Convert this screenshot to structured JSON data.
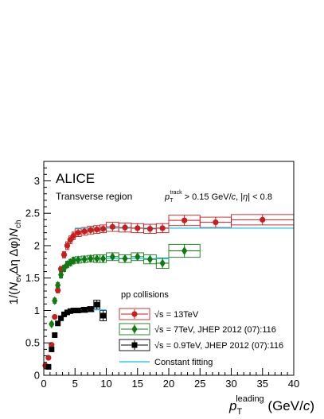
{
  "chart_data": {
    "type": "scatter",
    "experiment_label": "ALICE",
    "region_label": "Transverse region",
    "cut_label": {
      "prefix": "p",
      "prefix_sub": "T",
      "prefix_sup": "track",
      "main": " > 0.15 GeV/",
      "c_italic": "c",
      "middle": ", |",
      "eta": "η",
      "suffix": "| < 0.8"
    },
    "xlabel": {
      "p": "p",
      "sub": "T",
      "sup": "leading",
      "unit_open": " (GeV/",
      "c_italic": "c",
      "unit_close": ")"
    },
    "ylabel": "1/(N_ev Δη Δφ) N_ch",
    "xlim": [
      0,
      40
    ],
    "ylim": [
      0,
      3.3
    ],
    "xticks": [
      "0",
      "5",
      "10",
      "15",
      "20",
      "25",
      "30",
      "35",
      "40"
    ],
    "yticks": [
      "0",
      "0.5",
      "1",
      "1.5",
      "2",
      "2.5",
      "3"
    ],
    "legend": {
      "header": "pp collisions",
      "placement": "lower-middle",
      "entries": [
        {
          "text": "√s = 13TeV",
          "marker": "circle",
          "color": "#c81e1e"
        },
        {
          "text": "√s = 7TeV, JHEP 2012 (07):116",
          "marker": "diamond",
          "color": "#137a13"
        },
        {
          "text": "√s = 0.9TeV, JHEP 2012 (07):116",
          "marker": "square",
          "color": "#000000"
        },
        {
          "text": "Constant fitting",
          "marker": "line",
          "color": "#33ccee"
        }
      ]
    },
    "series": [
      {
        "name": "√s = 13TeV",
        "marker": "circle",
        "color": "#c81e1e",
        "points": [
          {
            "x": 0.25,
            "y": 0.15,
            "dx": 0.25,
            "dy": 0.0
          },
          {
            "x": 0.75,
            "y": 0.27,
            "dx": 0.25,
            "dy": 0.0
          },
          {
            "x": 1.25,
            "y": 0.47,
            "dx": 0.25,
            "dy": 0.0
          },
          {
            "x": 1.75,
            "y": 0.9,
            "dx": 0.25,
            "dy": 0.03
          },
          {
            "x": 2.25,
            "y": 1.31,
            "dx": 0.25,
            "dy": 0.04
          },
          {
            "x": 2.75,
            "y": 1.64,
            "dx": 0.25,
            "dy": 0.04
          },
          {
            "x": 3.25,
            "y": 1.86,
            "dx": 0.25,
            "dy": 0.05
          },
          {
            "x": 3.75,
            "y": 2.0,
            "dx": 0.25,
            "dy": 0.06
          },
          {
            "x": 4.25,
            "y": 2.09,
            "dx": 0.25,
            "dy": 0.06
          },
          {
            "x": 4.75,
            "y": 2.15,
            "dx": 0.25,
            "dy": 0.06
          },
          {
            "x": 5.5,
            "y": 2.2,
            "dx": 0.5,
            "dy": 0.06
          },
          {
            "x": 6.5,
            "y": 2.22,
            "dx": 0.5,
            "dy": 0.06
          },
          {
            "x": 7.5,
            "y": 2.24,
            "dx": 0.5,
            "dy": 0.06
          },
          {
            "x": 8.5,
            "y": 2.25,
            "dx": 0.5,
            "dy": 0.06
          },
          {
            "x": 9.5,
            "y": 2.26,
            "dx": 0.5,
            "dy": 0.06
          },
          {
            "x": 11.0,
            "y": 2.29,
            "dx": 1.0,
            "dy": 0.07
          },
          {
            "x": 13.0,
            "y": 2.28,
            "dx": 1.0,
            "dy": 0.07
          },
          {
            "x": 15.0,
            "y": 2.27,
            "dx": 1.0,
            "dy": 0.07
          },
          {
            "x": 17.0,
            "y": 2.26,
            "dx": 1.0,
            "dy": 0.07
          },
          {
            "x": 19.0,
            "y": 2.27,
            "dx": 1.0,
            "dy": 0.07
          },
          {
            "x": 22.5,
            "y": 2.39,
            "dx": 2.5,
            "dy": 0.08
          },
          {
            "x": 27.5,
            "y": 2.36,
            "dx": 2.5,
            "dy": 0.08
          },
          {
            "x": 35.0,
            "y": 2.4,
            "dx": 5.0,
            "dy": 0.08
          }
        ]
      },
      {
        "name": "√s = 7TeV, JHEP 2012 (07):116",
        "marker": "diamond",
        "color": "#137a13",
        "points": [
          {
            "x": 1.25,
            "y": 0.79,
            "dx": 0.25,
            "dy": 0.03
          },
          {
            "x": 1.75,
            "y": 1.15,
            "dx": 0.25,
            "dy": 0.04
          },
          {
            "x": 2.25,
            "y": 1.39,
            "dx": 0.25,
            "dy": 0.04
          },
          {
            "x": 2.75,
            "y": 1.55,
            "dx": 0.25,
            "dy": 0.05
          },
          {
            "x": 3.25,
            "y": 1.65,
            "dx": 0.25,
            "dy": 0.05
          },
          {
            "x": 3.75,
            "y": 1.71,
            "dx": 0.25,
            "dy": 0.05
          },
          {
            "x": 4.25,
            "y": 1.74,
            "dx": 0.25,
            "dy": 0.05
          },
          {
            "x": 4.75,
            "y": 1.77,
            "dx": 0.25,
            "dy": 0.05
          },
          {
            "x": 5.5,
            "y": 1.78,
            "dx": 0.5,
            "dy": 0.05
          },
          {
            "x": 6.5,
            "y": 1.79,
            "dx": 0.5,
            "dy": 0.05
          },
          {
            "x": 7.5,
            "y": 1.8,
            "dx": 0.5,
            "dy": 0.05
          },
          {
            "x": 8.5,
            "y": 1.8,
            "dx": 0.5,
            "dy": 0.06
          },
          {
            "x": 9.5,
            "y": 1.8,
            "dx": 0.5,
            "dy": 0.06
          },
          {
            "x": 11.0,
            "y": 1.83,
            "dx": 1.0,
            "dy": 0.06
          },
          {
            "x": 13.0,
            "y": 1.8,
            "dx": 1.0,
            "dy": 0.06
          },
          {
            "x": 15.0,
            "y": 1.83,
            "dx": 1.0,
            "dy": 0.06
          },
          {
            "x": 17.0,
            "y": 1.79,
            "dx": 1.0,
            "dy": 0.07
          },
          {
            "x": 19.0,
            "y": 1.73,
            "dx": 1.0,
            "dy": 0.08
          },
          {
            "x": 22.5,
            "y": 1.92,
            "dx": 2.5,
            "dy": 0.1
          }
        ]
      },
      {
        "name": "√s = 0.9TeV, JHEP 2012 (07):116",
        "marker": "square",
        "color": "#000000",
        "points": [
          {
            "x": 0.75,
            "y": 0.13,
            "dx": 0.25,
            "dy": 0.0
          },
          {
            "x": 1.25,
            "y": 0.4,
            "dx": 0.25,
            "dy": 0.0
          },
          {
            "x": 1.75,
            "y": 0.62,
            "dx": 0.25,
            "dy": 0.03
          },
          {
            "x": 2.25,
            "y": 0.8,
            "dx": 0.25,
            "dy": 0.03
          },
          {
            "x": 2.75,
            "y": 0.88,
            "dx": 0.25,
            "dy": 0.03
          },
          {
            "x": 3.25,
            "y": 0.94,
            "dx": 0.25,
            "dy": 0.03
          },
          {
            "x": 3.75,
            "y": 0.97,
            "dx": 0.25,
            "dy": 0.03
          },
          {
            "x": 4.25,
            "y": 0.99,
            "dx": 0.25,
            "dy": 0.03
          },
          {
            "x": 4.75,
            "y": 1.0,
            "dx": 0.25,
            "dy": 0.03
          },
          {
            "x": 5.5,
            "y": 1.0,
            "dx": 0.5,
            "dy": 0.03
          },
          {
            "x": 6.5,
            "y": 1.01,
            "dx": 0.5,
            "dy": 0.04
          },
          {
            "x": 7.5,
            "y": 1.02,
            "dx": 0.5,
            "dy": 0.04
          },
          {
            "x": 8.5,
            "y": 1.09,
            "dx": 0.5,
            "dy": 0.07
          },
          {
            "x": 9.5,
            "y": 0.92,
            "dx": 0.5,
            "dy": 0.08
          }
        ]
      }
    ],
    "constant_fits": [
      {
        "x_range": [
          5,
          40
        ],
        "y": 2.27,
        "color": "#33ccee"
      },
      {
        "x_range": [
          5,
          20
        ],
        "y": 1.8,
        "color": "#33ccee"
      },
      {
        "x_range": [
          5,
          10
        ],
        "y": 1.01,
        "color": "#33ccee"
      }
    ]
  }
}
